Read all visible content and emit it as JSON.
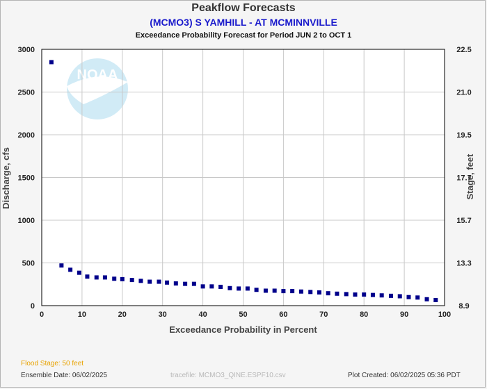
{
  "header": {
    "title": "Peakflow Forecasts",
    "subtitle": "(MCMO3) S YAMHILL - AT MCMINNVILLE",
    "period": "Exceedance Probability Forecast for Period JUN 2 to OCT 1"
  },
  "footer": {
    "flood_stage": "Flood Stage: 50 feet",
    "ensemble_date": "Ensemble Date: 06/02/2025",
    "tracefile": "tracefile:  MCMO3_QINE.ESPF10.csv",
    "plot_created": "Plot Created: 06/02/2025 05:36 PDT"
  },
  "watermark": {
    "text": "NOAA",
    "color": "#7ec8e8"
  },
  "colors": {
    "points": "#00008b",
    "grid": "#c8c8c8",
    "plot_bg": "#ffffff",
    "flood_stage": "#e8a200"
  },
  "chart_data": {
    "type": "scatter",
    "xlabel": "Exceedance Probability in Percent",
    "ylabel": "Discharge, cfs",
    "y2label": "Stage, feet",
    "xlim": [
      0,
      100
    ],
    "ylim": [
      0,
      3000
    ],
    "x_ticks": [
      "0",
      "10",
      "20",
      "30",
      "40",
      "50",
      "60",
      "70",
      "80",
      "90",
      "100"
    ],
    "y_ticks": [
      "0",
      "500",
      "1000",
      "1500",
      "2000",
      "2500",
      "3000"
    ],
    "y2_ticks": [
      "8.9",
      "13.3",
      "15.7",
      "17.7",
      "19.5",
      "21.0",
      "22.5"
    ],
    "grid": true,
    "series": [
      {
        "x": [
          2.4,
          4.9,
          7.1,
          9.3,
          11.3,
          13.6,
          15.7,
          18.0,
          20.0,
          22.4,
          24.6,
          26.8,
          29.1,
          31.1,
          33.3,
          35.6,
          37.8,
          40.0,
          42.2,
          44.4,
          46.7,
          48.9,
          51.1,
          53.3,
          55.6,
          57.8,
          60.0,
          62.2,
          64.4,
          66.7,
          68.9,
          71.1,
          73.3,
          75.6,
          77.8,
          80.0,
          82.2,
          84.4,
          86.7,
          88.9,
          91.1,
          93.3,
          95.6,
          97.8
        ],
        "y": [
          2850,
          470,
          420,
          385,
          340,
          330,
          330,
          315,
          310,
          300,
          290,
          280,
          280,
          270,
          260,
          255,
          255,
          225,
          225,
          220,
          205,
          200,
          200,
          185,
          175,
          175,
          170,
          170,
          165,
          160,
          155,
          145,
          140,
          135,
          130,
          130,
          125,
          120,
          115,
          110,
          100,
          95,
          75,
          65
        ]
      }
    ]
  }
}
